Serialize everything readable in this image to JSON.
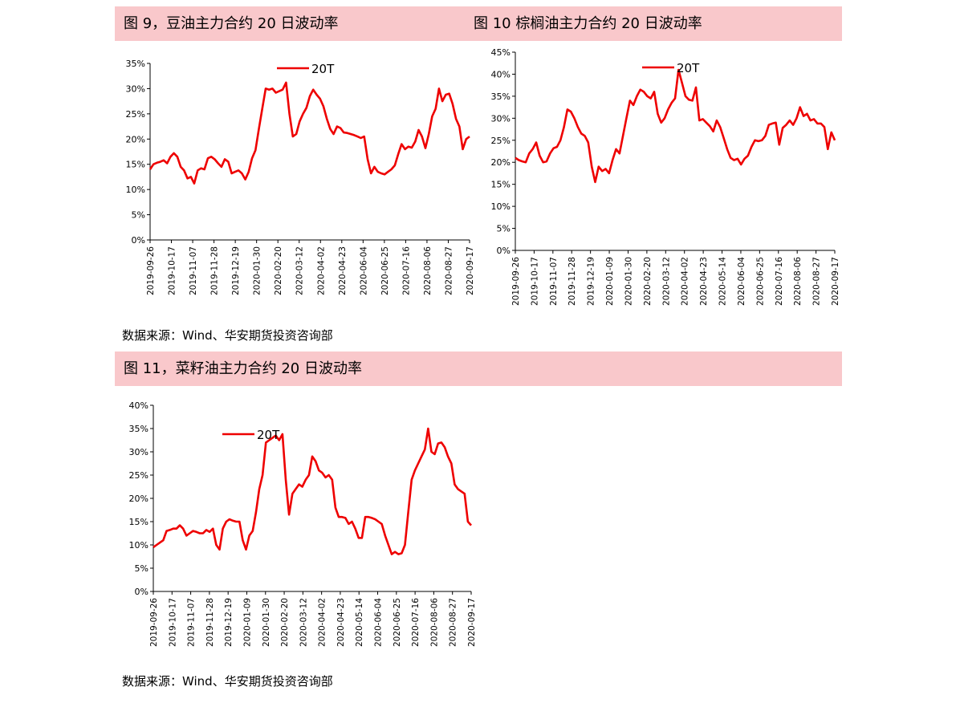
{
  "figures": {
    "fig9_title": "图 9，豆油主力合约 20 日波动率",
    "fig10_title": "图 10 棕榈油主力合约 20 日波动率",
    "fig11_title": "图 11，菜籽油主力合约 20 日波动率",
    "source_text": "数据来源：Wind、华安期货投资咨询部"
  },
  "colors": {
    "series": "#ee0000",
    "banner": "#f9c8cb",
    "axis": "#000000"
  },
  "chart_data": [
    {
      "id": "fig9",
      "type": "line",
      "legend": "20T",
      "legend_position": "top-center",
      "grid": false,
      "ylim": [
        0,
        35
      ],
      "yticks": [
        "0%",
        "5%",
        "10%",
        "15%",
        "20%",
        "25%",
        "30%",
        "35%"
      ],
      "xticks": [
        "2019-09-26",
        "2019-10-17",
        "2019-11-07",
        "2019-11-28",
        "2019-12-19",
        "2020-01-30",
        "2020-02-20",
        "2020-03-12",
        "2020-04-02",
        "2020-04-23",
        "2020-06-04",
        "2020-06-25",
        "2020-07-16",
        "2020-08-06",
        "2020-08-27",
        "2020-09-17"
      ],
      "series": [
        {
          "name": "20T",
          "values": [
            14,
            15,
            15.3,
            15.5,
            15.8,
            15.2,
            16.5,
            17.2,
            16.5,
            14.5,
            13.8,
            12.2,
            12.5,
            11.2,
            13.8,
            14.2,
            14,
            16.2,
            16.5,
            16,
            15.2,
            14.5,
            16,
            15.5,
            13.2,
            13.5,
            13.8,
            13.2,
            12,
            13.5,
            16.2,
            17.8,
            22,
            26,
            30,
            29.8,
            30,
            29.2,
            29.5,
            29.8,
            31.2,
            25,
            20.5,
            21,
            23.5,
            25,
            26.2,
            28.5,
            29.8,
            28.8,
            28,
            26.5,
            24,
            22,
            21,
            22.5,
            22.2,
            21.3,
            21.2,
            21,
            20.8,
            20.5,
            20.2,
            20.5,
            16,
            13.2,
            14.5,
            13.5,
            13.2,
            13,
            13.5,
            14,
            14.8,
            17,
            19,
            18,
            18.5,
            18.3,
            19.5,
            21.8,
            20.5,
            18.2,
            21,
            24.5,
            26,
            30,
            27.5,
            28.8,
            29,
            27,
            24,
            22.5,
            18,
            20,
            20.5
          ]
        }
      ]
    },
    {
      "id": "fig10",
      "type": "line",
      "legend": "20T",
      "legend_position": "top-center",
      "grid": false,
      "ylim": [
        0,
        45
      ],
      "yticks": [
        "0%",
        "5%",
        "10%",
        "15%",
        "20%",
        "25%",
        "30%",
        "35%",
        "40%",
        "45%"
      ],
      "xticks": [
        "2019-09-26",
        "2019-10-17",
        "2019-11-07",
        "2019-11-28",
        "2019-12-19",
        "2020-01-09",
        "2020-01-30",
        "2020-02-20",
        "2020-03-12",
        "2020-04-02",
        "2020-04-23",
        "2020-05-14",
        "2020-06-04",
        "2020-06-25",
        "2020-07-16",
        "2020-08-06",
        "2020-08-27",
        "2020-09-17"
      ],
      "series": [
        {
          "name": "20T",
          "values": [
            21,
            20.5,
            20.2,
            20,
            22,
            23,
            24.5,
            21.5,
            20,
            20.2,
            22,
            23.2,
            23.5,
            25,
            28,
            32,
            31.5,
            30,
            28,
            26.5,
            26,
            24.5,
            19,
            15.5,
            19,
            18,
            18.5,
            17.5,
            20.5,
            23,
            22,
            26,
            30,
            34,
            33,
            35,
            36.5,
            36,
            35,
            34.5,
            36,
            31,
            29,
            30,
            32,
            33.5,
            34.5,
            41,
            38,
            35,
            34.2,
            34,
            37,
            29.5,
            29.8,
            29,
            28.2,
            27,
            29.5,
            28,
            25.5,
            23,
            21,
            20.5,
            20.8,
            19.5,
            20.8,
            21.5,
            23.5,
            25,
            24.8,
            25,
            26,
            28.5,
            28.8,
            29,
            24,
            27.8,
            28.5,
            29.5,
            28.5,
            30,
            32.5,
            30.5,
            31,
            29.5,
            29.8,
            28.8,
            28.8,
            28,
            23,
            26.8,
            25
          ]
        }
      ]
    },
    {
      "id": "fig11",
      "type": "line",
      "legend": "20T",
      "legend_position": "top-left",
      "grid": false,
      "ylim": [
        0,
        40
      ],
      "yticks": [
        "0%",
        "5%",
        "10%",
        "15%",
        "20%",
        "25%",
        "30%",
        "35%",
        "40%"
      ],
      "xticks": [
        "2019-09-26",
        "2019-10-17",
        "2019-11-07",
        "2019-11-28",
        "2019-12-19",
        "2020-01-09",
        "2020-01-30",
        "2020-02-20",
        "2020-03-12",
        "2020-04-02",
        "2020-04-23",
        "2020-05-14",
        "2020-06-04",
        "2020-06-25",
        "2020-07-16",
        "2020-08-06",
        "2020-08-27",
        "2020-09-17"
      ],
      "series": [
        {
          "name": "20T",
          "values": [
            9.5,
            10,
            10.5,
            11,
            13,
            13.2,
            13.5,
            13.5,
            14.2,
            13.5,
            12,
            12.5,
            13,
            12.8,
            12.5,
            12.5,
            13.2,
            12.8,
            13.5,
            10,
            9,
            13.5,
            15,
            15.5,
            15.2,
            15,
            15,
            11,
            9,
            12,
            13,
            17,
            22,
            25,
            32,
            32.5,
            33,
            33.5,
            32.5,
            33.8,
            24,
            16.5,
            21,
            22,
            23,
            22.5,
            24,
            25,
            29,
            28,
            26,
            25.5,
            24.5,
            25,
            24,
            18,
            16,
            16,
            15.8,
            14.5,
            15,
            13.5,
            11.5,
            11.5,
            16,
            16,
            15.8,
            15.5,
            15,
            14.5,
            12,
            10,
            8,
            8.5,
            8,
            8.2,
            10,
            17,
            24,
            26,
            27.5,
            29,
            30.5,
            35,
            30,
            29.5,
            31.8,
            32,
            31,
            29,
            27.5,
            23,
            22,
            21.5,
            21,
            15,
            14.2
          ]
        }
      ]
    }
  ]
}
